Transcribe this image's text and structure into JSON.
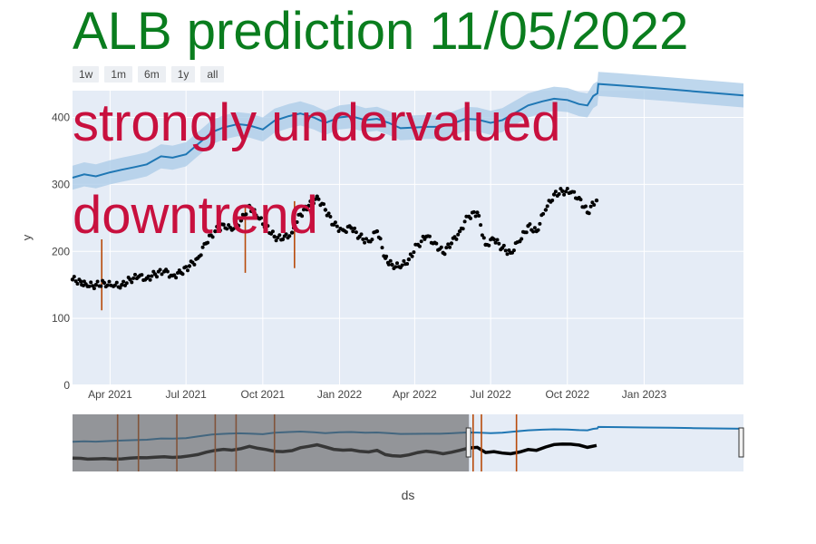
{
  "title": "ALB prediction 11/05/2022",
  "range_buttons": [
    "1w",
    "1m",
    "6m",
    "1y",
    "all"
  ],
  "annotations": [
    "strongly undervalued",
    "downtrend"
  ],
  "colors": {
    "title": "#0a7d1e",
    "annotation": "#c8103e",
    "forecast_line": "#1f77b4",
    "forecast_band": "#aecde8",
    "actual_points": "#000000",
    "changepoints": "#b84a0a",
    "plot_bg": "#e5ecf6"
  },
  "chart_data": {
    "type": "line",
    "xlabel": "ds",
    "ylabel": "y",
    "ylim": [
      0,
      440
    ],
    "xlim": [
      "2021-02-15",
      "2023-04-30"
    ],
    "y_ticks": [
      0,
      100,
      200,
      300,
      400
    ],
    "x_ticks": [
      {
        "date": "2021-04-01",
        "label": "Apr 2021"
      },
      {
        "date": "2021-07-01",
        "label": "Jul 2021"
      },
      {
        "date": "2021-10-01",
        "label": "Oct 2021"
      },
      {
        "date": "2022-01-01",
        "label": "Jan 2022"
      },
      {
        "date": "2022-04-01",
        "label": "Apr 2022"
      },
      {
        "date": "2022-07-01",
        "label": "Jul 2022"
      },
      {
        "date": "2022-10-01",
        "label": "Oct 2022"
      },
      {
        "date": "2023-01-01",
        "label": "Jan 2023"
      }
    ],
    "grid": true,
    "series": [
      {
        "kind": "scatter",
        "x": [
          "2021-02-15",
          "2021-02-25",
          "2021-03-05",
          "2021-03-15",
          "2021-03-25",
          "2021-04-05",
          "2021-04-15",
          "2021-04-25",
          "2021-05-05",
          "2021-05-15",
          "2021-05-25",
          "2021-06-05",
          "2021-06-15",
          "2021-06-25",
          "2021-07-05",
          "2021-07-15",
          "2021-07-25",
          "2021-08-05",
          "2021-08-15",
          "2021-08-25",
          "2021-09-05",
          "2021-09-15",
          "2021-09-25",
          "2021-10-05",
          "2021-10-15",
          "2021-10-25",
          "2021-11-05",
          "2021-11-15",
          "2021-11-25",
          "2021-12-05",
          "2021-12-15",
          "2021-12-25",
          "2022-01-05",
          "2022-01-15",
          "2022-01-25",
          "2022-02-05",
          "2022-02-15",
          "2022-02-25",
          "2022-03-05",
          "2022-03-15",
          "2022-03-25",
          "2022-04-05",
          "2022-04-15",
          "2022-04-25",
          "2022-05-05",
          "2022-05-15",
          "2022-05-25",
          "2022-06-05",
          "2022-06-15",
          "2022-06-25",
          "2022-07-05",
          "2022-07-15",
          "2022-07-25",
          "2022-08-05",
          "2022-08-15",
          "2022-08-25",
          "2022-09-05",
          "2022-09-15",
          "2022-09-25",
          "2022-10-05",
          "2022-10-15",
          "2022-10-25",
          "2022-11-05"
        ],
        "y": [
          158,
          155,
          148,
          150,
          153,
          148,
          150,
          158,
          162,
          160,
          166,
          170,
          164,
          168,
          178,
          190,
          212,
          230,
          240,
          232,
          246,
          268,
          250,
          238,
          222,
          218,
          228,
          255,
          268,
          282,
          262,
          240,
          232,
          235,
          222,
          215,
          230,
          190,
          180,
          176,
          188,
          210,
          222,
          213,
          198,
          212,
          230,
          252,
          258,
          210,
          218,
          205,
          198,
          215,
          238,
          230,
          262,
          285,
          290,
          288,
          280,
          258,
          276
        ]
      },
      {
        "kind": "line",
        "name": "",
        "x": [
          "2021-02-15",
          "2021-03-01",
          "2021-03-15",
          "2021-04-01",
          "2021-04-15",
          "2021-05-01",
          "2021-05-15",
          "2021-06-01",
          "2021-06-15",
          "2021-07-01",
          "2021-07-15",
          "2021-08-01",
          "2021-08-15",
          "2021-09-01",
          "2021-09-15",
          "2021-10-01",
          "2021-10-15",
          "2021-11-01",
          "2021-11-15",
          "2021-12-01",
          "2021-12-15",
          "2022-01-01",
          "2022-01-15",
          "2022-02-01",
          "2022-02-15",
          "2022-03-01",
          "2022-03-15",
          "2022-04-01",
          "2022-04-15",
          "2022-05-01",
          "2022-05-15",
          "2022-06-01",
          "2022-06-15",
          "2022-07-01",
          "2022-07-15",
          "2022-08-01",
          "2022-08-15",
          "2022-09-01",
          "2022-09-15",
          "2022-10-01",
          "2022-10-15",
          "2022-10-25",
          "2022-11-01",
          "2022-11-06",
          "2022-11-07",
          "2022-12-01",
          "2023-01-01",
          "2023-02-01",
          "2023-03-01",
          "2023-04-30"
        ],
        "y": [
          310,
          315,
          312,
          318,
          322,
          326,
          330,
          342,
          340,
          345,
          360,
          378,
          385,
          390,
          388,
          382,
          395,
          402,
          406,
          400,
          392,
          400,
          402,
          396,
          398,
          392,
          384,
          385,
          386,
          386,
          390,
          398,
          397,
          392,
          396,
          408,
          418,
          424,
          428,
          426,
          420,
          418,
          432,
          436,
          450,
          448,
          445,
          442,
          439,
          433
        ],
        "band_width": 18
      }
    ],
    "changepoints": [
      {
        "date": "2021-03-22",
        "y_low": 112,
        "y_high": 218
      },
      {
        "date": "2021-09-10",
        "y_low": 168,
        "y_high": 270
      },
      {
        "date": "2021-11-08",
        "y_low": 175,
        "y_high": 275
      }
    ],
    "rangeslider": {
      "changepoints": [
        "2021-04-10",
        "2021-05-05",
        "2021-06-20",
        "2021-08-05",
        "2021-08-30",
        "2021-10-15",
        "2022-06-10",
        "2022-06-20",
        "2022-08-01"
      ],
      "selected_from": "2022-06-05"
    }
  }
}
